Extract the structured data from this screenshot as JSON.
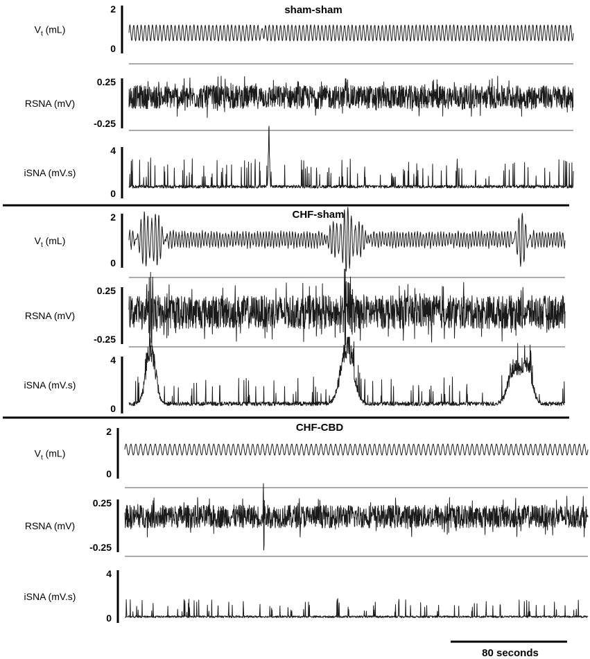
{
  "chart_data": [
    {
      "type": "line",
      "title": "sham-sham",
      "time_scale_seconds": 80,
      "traces": [
        {
          "name": "V",
          "subscript": "t",
          "unit": "(mL)",
          "ticks": [
            "2",
            "0"
          ],
          "ylim": [
            0,
            2
          ],
          "pattern": "regular-oscillation",
          "baseline": 1.0,
          "amplitude": 0.55,
          "cycles": 118,
          "noise": 0.06,
          "events": [
            {
              "t": 0.3,
              "amp": 0.4,
              "width": 0.004
            }
          ]
        },
        {
          "name": "RSNA",
          "subscript": "",
          "unit": "(mV)",
          "ticks": [
            "0.25",
            "-0.25"
          ],
          "ylim": [
            -0.25,
            0.25
          ],
          "pattern": "dense-noise",
          "baseline": 0.0,
          "amplitude": 0.15,
          "cycles": 0,
          "noise": 0.15,
          "events": [
            {
              "t": 0.685,
              "amp": 0.33,
              "width": 0.002
            }
          ]
        },
        {
          "name": "iSNA",
          "subscript": "",
          "unit": "(mV.s)",
          "ticks": [
            "4",
            "0"
          ],
          "ylim": [
            0,
            4
          ],
          "pattern": "bursts",
          "baseline": 0.4,
          "amplitude": 1.0,
          "cycles": 0,
          "noise": 0.2,
          "events": [
            {
              "t": 0.315,
              "amp": 4.2,
              "width": 0.002
            }
          ]
        }
      ]
    },
    {
      "type": "line",
      "title": "CHF-sham",
      "time_scale_seconds": 80,
      "traces": [
        {
          "name": "V",
          "subscript": "t",
          "unit": "(mL)",
          "ticks": [
            "2",
            "0"
          ],
          "ylim": [
            0,
            2
          ],
          "pattern": "periodic-breathing",
          "baseline": 0.9,
          "amplitude": 0.3,
          "cycles": 150,
          "noise": 0.08,
          "events": [
            {
              "t": 0.05,
              "amp": 0.9,
              "width": 0.03
            },
            {
              "t": 0.5,
              "amp": 0.9,
              "width": 0.035
            },
            {
              "t": 0.9,
              "amp": 0.7,
              "width": 0.02
            }
          ]
        },
        {
          "name": "RSNA",
          "subscript": "",
          "unit": "(mV)",
          "ticks": [
            "0.25",
            "-0.25"
          ],
          "ylim": [
            -0.25,
            0.25
          ],
          "pattern": "dense-noise",
          "baseline": 0.0,
          "amplitude": 0.12,
          "cycles": 0,
          "noise": 0.12,
          "events": [
            {
              "t": 0.05,
              "amp": 0.32,
              "width": 0.01
            },
            {
              "t": 0.5,
              "amp": 0.32,
              "width": 0.012
            }
          ]
        },
        {
          "name": "iSNA",
          "subscript": "",
          "unit": "(mV.s)",
          "ticks": [
            "4",
            "0"
          ],
          "ylim": [
            0,
            4
          ],
          "pattern": "bursts",
          "baseline": 0.5,
          "amplitude": 0.9,
          "cycles": 0,
          "noise": 0.25,
          "events": [
            {
              "t": 0.05,
              "amp": 4.3,
              "width": 0.015
            },
            {
              "t": 0.5,
              "amp": 4.4,
              "width": 0.02
            },
            {
              "t": 0.885,
              "amp": 2.8,
              "width": 0.02
            },
            {
              "t": 0.915,
              "amp": 2.6,
              "width": 0.015
            }
          ]
        }
      ]
    },
    {
      "type": "line",
      "title": "CHF-CBD",
      "time_scale_seconds": 80,
      "traces": [
        {
          "name": "V",
          "subscript": "t",
          "unit": "(mL)",
          "ticks": [
            "2",
            "0"
          ],
          "ylim": [
            0,
            2
          ],
          "pattern": "regular-oscillation",
          "baseline": 1.05,
          "amplitude": 0.42,
          "cycles": 95,
          "noise": 0.02,
          "events": []
        },
        {
          "name": "RSNA",
          "subscript": "",
          "unit": "(mV)",
          "ticks": [
            "0.25",
            "-0.25"
          ],
          "ylim": [
            -0.25,
            0.25
          ],
          "pattern": "dense-noise",
          "baseline": 0.0,
          "amplitude": 0.1,
          "cycles": 0,
          "noise": 0.1,
          "events": [
            {
              "t": 0.3,
              "amp": 0.3,
              "width": 0.002
            }
          ]
        },
        {
          "name": "iSNA",
          "subscript": "",
          "unit": "(mV.s)",
          "ticks": [
            "4",
            "0"
          ],
          "ylim": [
            0,
            4
          ],
          "pattern": "bursts",
          "baseline": 0.5,
          "amplitude": 1.0,
          "cycles": 0,
          "noise": 0.2,
          "events": []
        }
      ]
    }
  ],
  "scale_bar": {
    "label": "80 seconds"
  },
  "colors": {
    "trace": "#1a1a1a",
    "separator": "#000000",
    "guide": "#555555"
  }
}
